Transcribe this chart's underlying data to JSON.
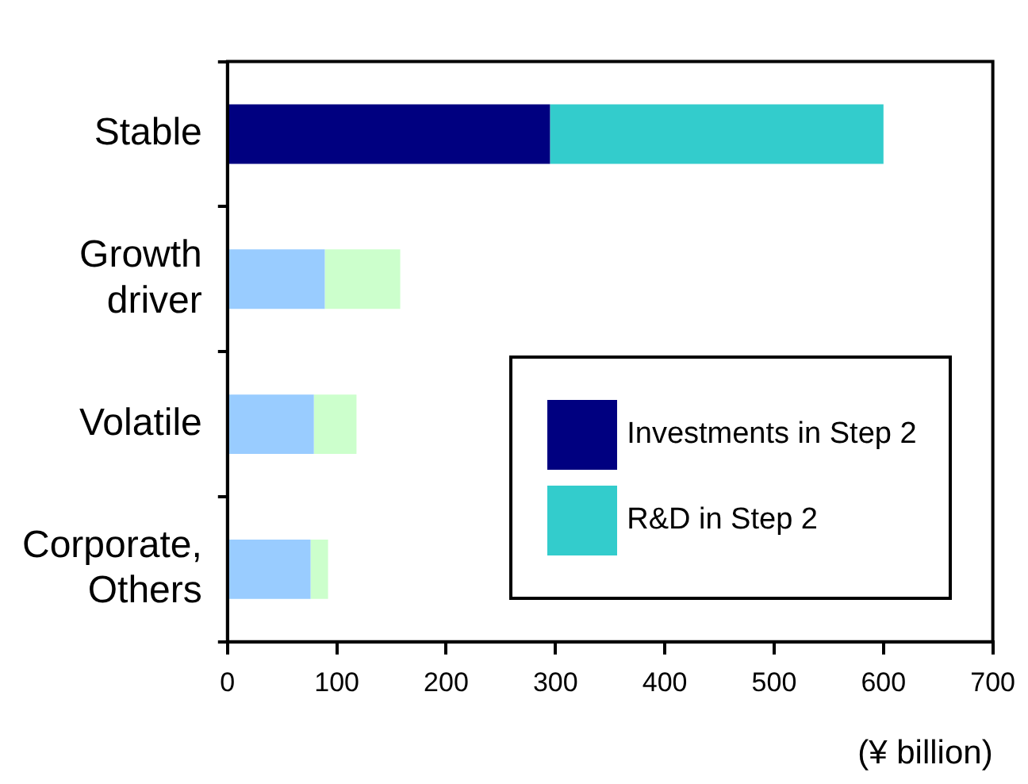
{
  "chart_data": {
    "type": "bar",
    "orientation": "horizontal",
    "stacked": true,
    "xlabel": "(¥ billion)",
    "categories": [
      "Stable",
      "Growth driver",
      "Volatile",
      "Corporate, Others"
    ],
    "series": [
      {
        "name": "Investments in Step 2",
        "color": "#000080",
        "colors": [
          "#000080",
          "#99ccff",
          "#99ccff",
          "#99ccff"
        ],
        "values": [
          295,
          89,
          79,
          76
        ]
      },
      {
        "name": "R&D in Step 2",
        "color": "#33cccc",
        "colors": [
          "#33cccc",
          "#ccffcc",
          "#ccffcc",
          "#ccffcc"
        ],
        "values": [
          305,
          69,
          39,
          16
        ]
      }
    ],
    "xlim": [
      0,
      700
    ],
    "xticks": [
      0,
      100,
      200,
      300,
      400,
      500,
      600,
      700
    ],
    "grid": false,
    "legend": "bottom right"
  }
}
